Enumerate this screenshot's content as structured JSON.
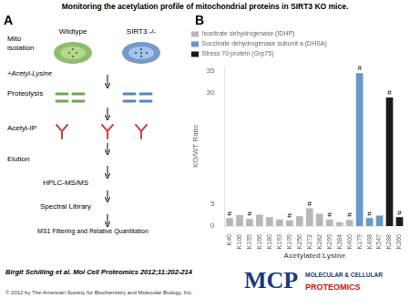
{
  "chart_data": {
    "type": "bar",
    "title": "Monitoring the acetylation profile of mitochondrial proteins in SIRT3 KO mice.",
    "xlabel": "Acetylated Lysine",
    "ylabel": "KO/WT Ratio",
    "categories": [
      "K40",
      "K106",
      "K155",
      "K166",
      "K180",
      "K193",
      "K195",
      "K256",
      "K272",
      "K282",
      "K299",
      "K384",
      "K400",
      "K179",
      "K498",
      "K547",
      "K288",
      "K360"
    ],
    "series": [
      {
        "name": "Isocitrate dehydrogenase (IDHP)",
        "color": "#b8b8b8",
        "values": [
          1.8,
          2.5,
          1.6,
          2.6,
          2.0,
          1.5,
          1.3,
          2.2,
          4.0,
          2.8,
          1.5,
          0.9,
          1.4,
          null,
          null,
          null,
          null,
          null
        ]
      },
      {
        "name": "Succinate dehydrogenase subunit a (DHSA)",
        "color": "#6699cc",
        "values": [
          null,
          null,
          null,
          null,
          null,
          null,
          null,
          null,
          null,
          null,
          null,
          null,
          null,
          34.5,
          1.8,
          2.4,
          null,
          null
        ]
      },
      {
        "name": "Stress 70 protein (Grp75)",
        "color": "#1a1a1a",
        "values": [
          null,
          null,
          null,
          null,
          null,
          null,
          null,
          null,
          null,
          null,
          null,
          null,
          null,
          null,
          null,
          null,
          29.0,
          2.0
        ]
      }
    ],
    "ylim": [
      0,
      36
    ],
    "yticks": [
      0,
      5,
      30,
      35
    ],
    "grid": false,
    "legend": "top",
    "annotations": [
      {
        "text": "A"
      },
      {
        "text": "Mito\nisolation"
      },
      {
        "text": "Wildtype"
      },
      {
        "text": "SIRT3 -/-"
      },
      {
        "text": "+Acetyl-Lysine"
      },
      {
        "text": "Proteolysis"
      },
      {
        "text": "Acetyl-IP"
      },
      {
        "text": "Elution"
      },
      {
        "text": "HPLC-MS/MS"
      },
      {
        "text": "Spectral Library"
      },
      {
        "text": "MS1 Filtering and Relative Quantitation"
      },
      {
        "text": "B"
      },
      {
        "text": "Birgit Schilling et al. Mol Cell Proteomics 2012;11:202-214"
      },
      {
        "text": "© 2012 by The American Society for Biochemistry and Molecular Biology, Inc."
      },
      {
        "text": "MCP"
      },
      {
        "text": "MOLECULAR & CELLULAR"
      },
      {
        "text": "PROTEOMICS"
      },
      {
        "x": "K40",
        "text": "#"
      },
      {
        "x": "K155",
        "text": "#"
      },
      {
        "x": "K195",
        "text": "#"
      },
      {
        "x": "K272",
        "text": "#"
      },
      {
        "x": "K299",
        "text": "#"
      },
      {
        "x": "K400",
        "text": "#"
      },
      {
        "x": "K179",
        "text": "#"
      },
      {
        "x": "K498",
        "text": "#"
      },
      {
        "x": "K288",
        "text": "#"
      },
      {
        "x": "K360",
        "text": "#"
      }
    ]
  }
}
